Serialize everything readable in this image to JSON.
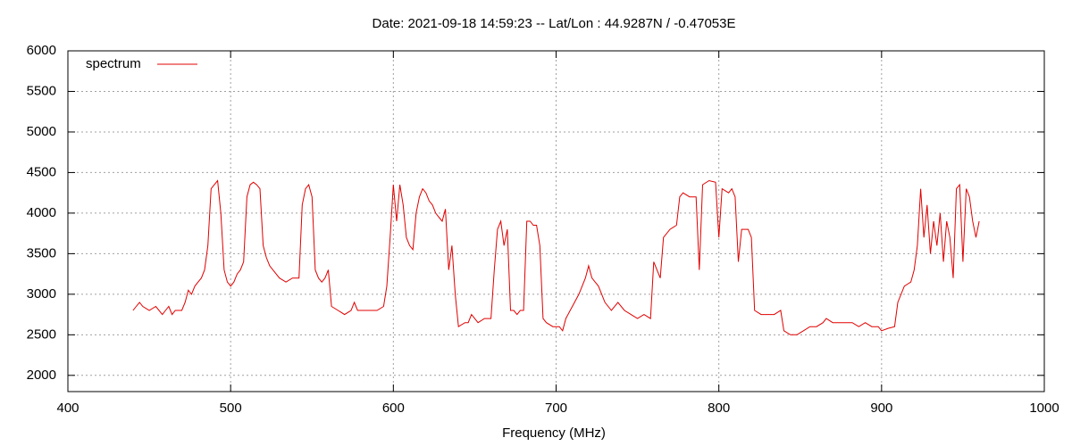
{
  "chart_data": {
    "type": "line",
    "title": "Date: 2021-09-18 14:59:23  --  Lat/Lon : 44.9287N / -0.47053E",
    "xlabel": "Frequency (MHz)",
    "xlim": [
      400,
      1000
    ],
    "xticks": [
      400,
      500,
      600,
      700,
      800,
      900,
      1000
    ],
    "ylim": [
      1800,
      6000
    ],
    "yticks": [
      2000,
      2500,
      3000,
      3500,
      4000,
      4500,
      5000,
      5500,
      6000
    ],
    "grid": true,
    "legend": "top-left",
    "x": [
      440,
      442,
      444,
      446,
      450,
      454,
      458,
      460,
      462,
      464,
      466,
      470,
      472,
      474,
      476,
      478,
      480,
      482,
      484,
      486,
      488,
      490,
      492,
      494,
      496,
      498,
      500,
      502,
      504,
      506,
      508,
      510,
      512,
      514,
      516,
      518,
      520,
      522,
      524,
      526,
      530,
      534,
      538,
      542,
      544,
      546,
      548,
      550,
      552,
      554,
      556,
      558,
      560,
      562,
      566,
      570,
      574,
      576,
      578,
      582,
      586,
      590,
      594,
      596,
      598,
      600,
      602,
      604,
      606,
      608,
      610,
      612,
      614,
      616,
      618,
      620,
      622,
      624,
      626,
      628,
      630,
      632,
      634,
      636,
      638,
      640,
      644,
      646,
      648,
      650,
      652,
      656,
      660,
      662,
      664,
      666,
      668,
      670,
      672,
      674,
      676,
      678,
      680,
      682,
      684,
      686,
      688,
      690,
      692,
      694,
      698,
      702,
      704,
      706,
      710,
      714,
      718,
      720,
      722,
      726,
      730,
      734,
      738,
      742,
      746,
      750,
      754,
      758,
      760,
      762,
      764,
      766,
      770,
      774,
      776,
      778,
      782,
      786,
      788,
      790,
      794,
      798,
      800,
      802,
      806,
      808,
      810,
      812,
      814,
      818,
      820,
      822,
      826,
      830,
      834,
      838,
      840,
      844,
      848,
      852,
      856,
      860,
      864,
      866,
      870,
      874,
      878,
      882,
      886,
      890,
      894,
      898,
      900,
      904,
      908,
      910,
      914,
      918,
      920,
      922,
      924,
      926,
      928,
      930,
      932,
      934,
      936,
      938,
      940,
      942,
      944,
      946,
      948,
      950,
      952,
      954,
      956,
      958,
      960
    ],
    "series": [
      {
        "name": "spectrum",
        "color": "#e00000",
        "values": [
          2800,
          2850,
          2900,
          2850,
          2800,
          2850,
          2750,
          2800,
          2850,
          2750,
          2800,
          2800,
          2900,
          3050,
          3000,
          3100,
          3150,
          3200,
          3300,
          3600,
          4300,
          4350,
          4400,
          4000,
          3300,
          3150,
          3100,
          3150,
          3250,
          3300,
          3400,
          4200,
          4350,
          4380,
          4350,
          4300,
          3600,
          3450,
          3350,
          3300,
          3200,
          3150,
          3200,
          3200,
          4100,
          4300,
          4350,
          4200,
          3300,
          3200,
          3150,
          3200,
          3300,
          2850,
          2800,
          2750,
          2800,
          2900,
          2800,
          2800,
          2800,
          2800,
          2850,
          3100,
          3700,
          4350,
          3900,
          4350,
          4100,
          3700,
          3600,
          3550,
          4000,
          4200,
          4300,
          4250,
          4150,
          4100,
          4000,
          3950,
          3900,
          4050,
          3300,
          3600,
          3000,
          2600,
          2650,
          2650,
          2750,
          2700,
          2650,
          2700,
          2700,
          3300,
          3800,
          3900,
          3600,
          3800,
          2800,
          2800,
          2750,
          2800,
          2800,
          3900,
          3900,
          3850,
          3850,
          3600,
          2700,
          2650,
          2600,
          2600,
          2550,
          2700,
          2850,
          3000,
          3200,
          3350,
          3200,
          3100,
          2900,
          2800,
          2900,
          2800,
          2750,
          2700,
          2750,
          2700,
          3400,
          3300,
          3200,
          3700,
          3800,
          3850,
          4200,
          4250,
          4200,
          4200,
          3300,
          4350,
          4400,
          4380,
          3700,
          4300,
          4250,
          4300,
          4200,
          3400,
          3800,
          3800,
          3700,
          2800,
          2750,
          2750,
          2750,
          2800,
          2550,
          2500,
          2500,
          2550,
          2600,
          2600,
          2650,
          2700,
          2650,
          2650,
          2650,
          2650,
          2600,
          2650,
          2600,
          2600,
          2550,
          2580,
          2600,
          2900,
          3100,
          3150,
          3300,
          3600,
          4300,
          3700,
          4100,
          3500,
          3900,
          3600,
          4000,
          3400,
          3900,
          3700,
          3200,
          4300,
          4350,
          3400,
          4300,
          4200,
          3900,
          3700,
          3900
        ]
      }
    ]
  }
}
